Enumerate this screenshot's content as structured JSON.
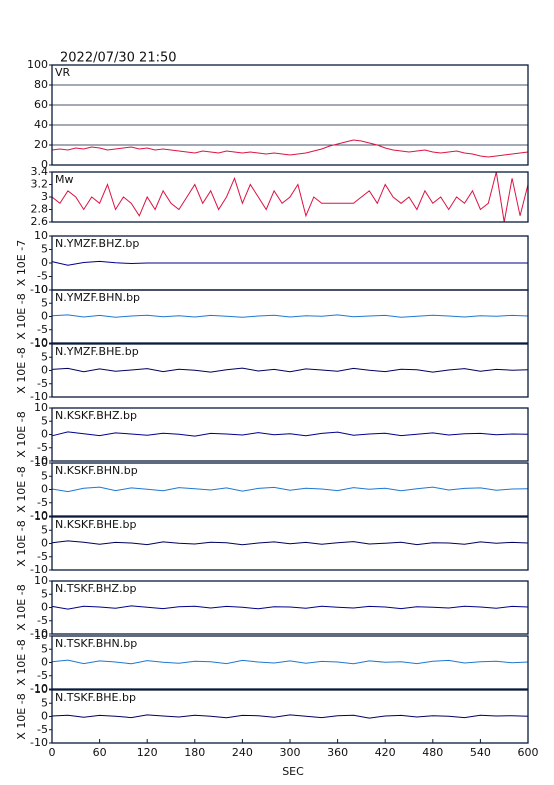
{
  "chart_data": [
    {
      "type": "line",
      "title": "2022/07/30 21:50",
      "label": "VR",
      "color": "#dc1444",
      "grid": true,
      "xlim": [
        0,
        600
      ],
      "ylim": [
        0,
        100
      ],
      "yticks": [
        0,
        20,
        40,
        60,
        80,
        100
      ],
      "x": [
        0,
        10,
        20,
        30,
        40,
        50,
        60,
        70,
        80,
        90,
        100,
        110,
        120,
        130,
        140,
        150,
        160,
        170,
        180,
        190,
        200,
        210,
        220,
        230,
        240,
        250,
        260,
        270,
        280,
        290,
        300,
        310,
        320,
        330,
        340,
        350,
        360,
        370,
        380,
        390,
        400,
        410,
        420,
        430,
        440,
        450,
        460,
        470,
        480,
        490,
        500,
        510,
        520,
        530,
        540,
        550,
        560,
        570,
        580,
        590,
        600
      ],
      "values": [
        15,
        16,
        15,
        17,
        16,
        18,
        17,
        15,
        16,
        17,
        18,
        16,
        17,
        15,
        16,
        15,
        14,
        13,
        12,
        14,
        13,
        12,
        14,
        13,
        12,
        13,
        12,
        11,
        12,
        11,
        10,
        11,
        12,
        14,
        16,
        19,
        21,
        23,
        25,
        24,
        22,
        20,
        17,
        15,
        14,
        13,
        14,
        15,
        13,
        12,
        13,
        14,
        12,
        11,
        9,
        8,
        9,
        10,
        11,
        12,
        13
      ]
    },
    {
      "type": "line",
      "label": "Mw",
      "color": "#dc1444",
      "xlim": [
        0,
        600
      ],
      "ylim": [
        2.6,
        3.4
      ],
      "yticks": [
        2.6,
        2.8,
        3.0,
        3.2,
        3.4
      ],
      "x": [
        0,
        10,
        20,
        30,
        40,
        50,
        60,
        70,
        80,
        90,
        100,
        110,
        120,
        130,
        140,
        150,
        160,
        170,
        180,
        190,
        200,
        210,
        220,
        230,
        240,
        250,
        260,
        270,
        280,
        290,
        300,
        310,
        320,
        330,
        340,
        350,
        360,
        370,
        380,
        390,
        400,
        410,
        420,
        430,
        440,
        450,
        460,
        470,
        480,
        490,
        500,
        510,
        520,
        530,
        540,
        550,
        560,
        570,
        580,
        590,
        600
      ],
      "values": [
        3.0,
        2.9,
        3.1,
        3.0,
        2.8,
        3.0,
        2.9,
        3.2,
        2.8,
        3.0,
        2.9,
        2.7,
        3.0,
        2.8,
        3.1,
        2.9,
        2.8,
        3.0,
        3.2,
        2.9,
        3.1,
        2.8,
        3.0,
        3.3,
        2.9,
        3.2,
        3.0,
        2.8,
        3.1,
        2.9,
        3.0,
        3.2,
        2.7,
        3.0,
        2.9,
        2.9,
        2.9,
        2.9,
        2.9,
        3.0,
        3.1,
        2.9,
        3.2,
        3.0,
        2.9,
        3.0,
        2.8,
        3.1,
        2.9,
        3.0,
        2.8,
        3.0,
        2.9,
        3.1,
        2.8,
        2.9,
        3.4,
        2.6,
        3.3,
        2.7,
        3.2
      ]
    },
    {
      "type": "line",
      "label": "N.YMZF.BHZ.bp",
      "ylabel": "X 10E -7",
      "color": "#00008b",
      "xlim": [
        0,
        600
      ],
      "ylim": [
        -10,
        10
      ],
      "yticks": [
        -10,
        -5,
        0,
        5,
        10
      ],
      "x": [
        0,
        20,
        40,
        60,
        80,
        100,
        120,
        140,
        160,
        180,
        200,
        220,
        240,
        260,
        280,
        300,
        320,
        340,
        360,
        380,
        400,
        420,
        440,
        460,
        480,
        500,
        520,
        540,
        560,
        580,
        600
      ],
      "values": [
        0.5,
        -0.8,
        0.2,
        0.6,
        0.1,
        -0.2,
        0,
        0,
        0,
        0,
        0,
        0,
        0,
        0,
        0,
        0,
        0,
        0,
        0,
        0,
        0,
        0,
        0,
        0,
        0,
        0,
        0,
        0,
        0,
        0,
        0
      ]
    },
    {
      "type": "line",
      "label": "N.YMZF.BHN.bp",
      "ylabel": "X 10E -8",
      "color": "#1e78d2",
      "xlim": [
        0,
        600
      ],
      "ylim": [
        -10,
        10
      ],
      "yticks": [
        -10,
        -5,
        0,
        5,
        10
      ],
      "x": [
        0,
        20,
        40,
        60,
        80,
        100,
        120,
        140,
        160,
        180,
        200,
        220,
        240,
        260,
        280,
        300,
        320,
        340,
        360,
        380,
        400,
        420,
        440,
        460,
        480,
        500,
        520,
        540,
        560,
        580,
        600
      ],
      "values": [
        0.3,
        0.6,
        -0.2,
        0.4,
        -0.3,
        0.2,
        0.5,
        -0.1,
        0.3,
        -0.2,
        0.4,
        0.1,
        -0.3,
        0.2,
        0.5,
        -0.2,
        0.3,
        0.1,
        0.6,
        -0.1,
        0.2,
        0.4,
        -0.3,
        0.1,
        0.5,
        0.2,
        -0.2,
        0.3,
        0.1,
        0.4,
        0.2
      ]
    },
    {
      "type": "line",
      "label": "N.YMZF.BHE.bp",
      "ylabel": "X 10E -8",
      "color": "#000060",
      "xlim": [
        0,
        600
      ],
      "ylim": [
        -10,
        10
      ],
      "yticks": [
        -10,
        -5,
        0,
        5,
        10
      ],
      "x": [
        0,
        20,
        40,
        60,
        80,
        100,
        120,
        140,
        160,
        180,
        200,
        220,
        240,
        260,
        280,
        300,
        320,
        340,
        360,
        380,
        400,
        420,
        440,
        460,
        480,
        500,
        520,
        540,
        560,
        580,
        600
      ],
      "values": [
        0.4,
        0.8,
        -0.5,
        0.6,
        -0.3,
        0.2,
        0.7,
        -0.4,
        0.5,
        0.1,
        -0.6,
        0.3,
        0.9,
        -0.2,
        0.4,
        -0.5,
        0.6,
        0.2,
        -0.3,
        0.8,
        0.1,
        -0.4,
        0.5,
        0.3,
        -0.6,
        0.2,
        0.7,
        -0.3,
        0.4,
        0.1,
        0.3
      ]
    },
    {
      "type": "line",
      "label": "N.KSKF.BHZ.bp",
      "ylabel": "X 10E -8",
      "color": "#00008b",
      "xlim": [
        0,
        600
      ],
      "ylim": [
        -10,
        10
      ],
      "yticks": [
        -10,
        -5,
        0,
        5,
        10
      ],
      "x": [
        0,
        20,
        40,
        60,
        80,
        100,
        120,
        140,
        160,
        180,
        200,
        220,
        240,
        260,
        280,
        300,
        320,
        340,
        360,
        380,
        400,
        420,
        440,
        460,
        480,
        500,
        520,
        540,
        560,
        580,
        600
      ],
      "values": [
        -0.5,
        1.0,
        0.3,
        -0.4,
        0.6,
        0.2,
        -0.3,
        0.5,
        0.1,
        -0.6,
        0.4,
        0.2,
        -0.2,
        0.7,
        -0.1,
        0.3,
        -0.5,
        0.4,
        0.9,
        -0.3,
        0.2,
        0.5,
        -0.4,
        0.1,
        0.6,
        -0.2,
        0.3,
        0.4,
        -0.1,
        0.2,
        0.1
      ]
    },
    {
      "type": "line",
      "label": "N.KSKF.BHN.bp",
      "ylabel": "X 10E -8",
      "color": "#1e78d2",
      "xlim": [
        0,
        600
      ],
      "ylim": [
        -10,
        10
      ],
      "yticks": [
        -10,
        -5,
        0,
        5,
        10
      ],
      "x": [
        0,
        20,
        40,
        60,
        80,
        100,
        120,
        140,
        160,
        180,
        200,
        220,
        240,
        260,
        280,
        300,
        320,
        340,
        360,
        380,
        400,
        420,
        440,
        460,
        480,
        500,
        520,
        540,
        560,
        580,
        600
      ],
      "values": [
        0.2,
        -0.8,
        0.5,
        0.9,
        -0.4,
        0.6,
        0.1,
        -0.5,
        0.7,
        0.3,
        -0.2,
        0.6,
        -0.6,
        0.4,
        0.8,
        -0.3,
        0.5,
        0.2,
        -0.4,
        0.7,
        0.1,
        0.5,
        -0.5,
        0.3,
        0.9,
        -0.2,
        0.4,
        0.6,
        -0.3,
        0.2,
        0.3
      ]
    },
    {
      "type": "line",
      "label": "N.KSKF.BHE.bp",
      "ylabel": "X 10E -8",
      "color": "#000060",
      "xlim": [
        0,
        600
      ],
      "ylim": [
        -10,
        10
      ],
      "yticks": [
        -10,
        -5,
        0,
        5,
        10
      ],
      "x": [
        0,
        20,
        40,
        60,
        80,
        100,
        120,
        140,
        160,
        180,
        200,
        220,
        240,
        260,
        280,
        300,
        320,
        340,
        360,
        380,
        400,
        420,
        440,
        460,
        480,
        500,
        520,
        540,
        560,
        580,
        600
      ],
      "values": [
        0.3,
        1.0,
        0.5,
        -0.3,
        0.4,
        0.2,
        -0.4,
        0.6,
        0.1,
        -0.2,
        0.5,
        0.3,
        -0.5,
        0.2,
        0.6,
        -0.1,
        0.4,
        -0.3,
        0.3,
        0.7,
        -0.2,
        0.1,
        0.5,
        -0.4,
        0.3,
        0.2,
        -0.3,
        0.6,
        0.1,
        0.4,
        0.2
      ]
    },
    {
      "type": "line",
      "label": "N.TSKF.BHZ.bp",
      "ylabel": "X 10E -8",
      "color": "#00008b",
      "xlim": [
        0,
        600
      ],
      "ylim": [
        -10,
        10
      ],
      "yticks": [
        -10,
        -5,
        0,
        5,
        10
      ],
      "x": [
        0,
        20,
        40,
        60,
        80,
        100,
        120,
        140,
        160,
        180,
        200,
        220,
        240,
        260,
        280,
        300,
        320,
        340,
        360,
        380,
        400,
        420,
        440,
        460,
        480,
        500,
        520,
        540,
        560,
        580,
        600
      ],
      "values": [
        0.4,
        -0.6,
        0.5,
        0.2,
        -0.3,
        0.6,
        0.1,
        -0.4,
        0.3,
        0.5,
        -0.2,
        0.4,
        0.1,
        -0.5,
        0.3,
        0.2,
        -0.3,
        0.5,
        0.1,
        -0.2,
        0.4,
        0.2,
        -0.4,
        0.3,
        0.1,
        -0.2,
        0.5,
        0.2,
        -0.3,
        0.4,
        0.2
      ]
    },
    {
      "type": "line",
      "label": "N.TSKF.BHN.bp",
      "ylabel": "X 10E -8",
      "color": "#1e78d2",
      "xlim": [
        0,
        600
      ],
      "ylim": [
        -10,
        10
      ],
      "yticks": [
        -10,
        -5,
        0,
        5,
        10
      ],
      "x": [
        0,
        20,
        40,
        60,
        80,
        100,
        120,
        140,
        160,
        180,
        200,
        220,
        240,
        260,
        280,
        300,
        320,
        340,
        360,
        380,
        400,
        420,
        440,
        460,
        480,
        500,
        520,
        540,
        560,
        580,
        600
      ],
      "values": [
        0.3,
        0.9,
        -0.4,
        0.6,
        0.2,
        -0.5,
        0.7,
        0.1,
        -0.3,
        0.5,
        0.3,
        -0.4,
        0.8,
        0.2,
        -0.2,
        0.6,
        -0.3,
        0.4,
        0.2,
        -0.5,
        0.6,
        0.1,
        0.3,
        -0.4,
        0.5,
        0.8,
        -0.2,
        0.3,
        0.5,
        -0.1,
        0.2
      ]
    },
    {
      "type": "line",
      "label": "N.TSKF.BHE.bp",
      "ylabel": "X 10E -8",
      "color": "#000060",
      "xlim": [
        0,
        600
      ],
      "ylim": [
        -10,
        10
      ],
      "yticks": [
        -10,
        -5,
        0,
        5,
        10
      ],
      "x": [
        0,
        20,
        40,
        60,
        80,
        100,
        120,
        140,
        160,
        180,
        200,
        220,
        240,
        260,
        280,
        300,
        320,
        340,
        360,
        380,
        400,
        420,
        440,
        460,
        480,
        500,
        520,
        540,
        560,
        580,
        600
      ],
      "values": [
        0.2,
        0.5,
        -0.3,
        0.4,
        0.1,
        -0.4,
        0.6,
        0.2,
        -0.2,
        0.5,
        0.1,
        -0.5,
        0.4,
        0.3,
        -0.3,
        0.6,
        0.1,
        -0.4,
        0.3,
        0.5,
        -0.6,
        0.2,
        0.4,
        -0.2,
        0.3,
        0.1,
        -0.4,
        0.5,
        0.2,
        0.3,
        0.1
      ],
      "xlabel": "SEC",
      "xticks": [
        0,
        60,
        120,
        180,
        240,
        300,
        360,
        420,
        480,
        540,
        600
      ]
    }
  ]
}
